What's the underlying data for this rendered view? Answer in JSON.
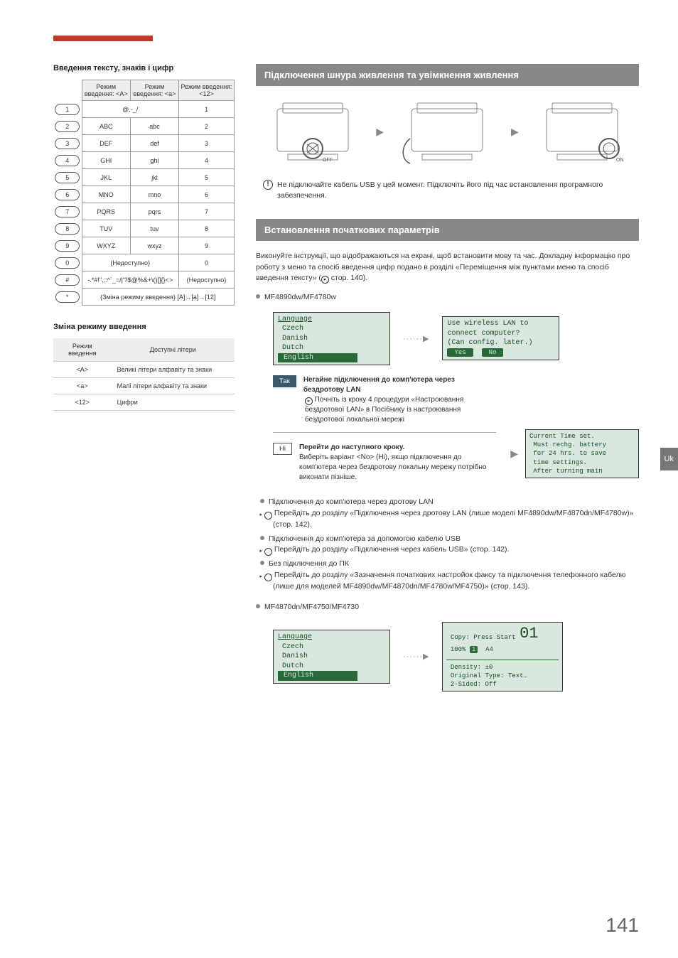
{
  "page_number": "141",
  "side_tab": "Uk",
  "left": {
    "h1": "Введення тексту, знаків і цифр",
    "char_table": {
      "headers": [
        "",
        "Режим введення: <A>",
        "Режим введення: <a>",
        "Режим введення: <12>"
      ],
      "rows": [
        {
          "key": "1",
          "a": "@.-_/",
          "b": "",
          "c": "1",
          "span": true
        },
        {
          "key": "2",
          "a": "ABC",
          "b": "abc",
          "c": "2"
        },
        {
          "key": "3",
          "a": "DEF",
          "b": "def",
          "c": "3"
        },
        {
          "key": "4",
          "a": "GHI",
          "b": "ghi",
          "c": "4"
        },
        {
          "key": "5",
          "a": "JKL",
          "b": "jkl",
          "c": "5"
        },
        {
          "key": "6",
          "a": "MNO",
          "b": "mno",
          "c": "6"
        },
        {
          "key": "7",
          "a": "PQRS",
          "b": "pqrs",
          "c": "7"
        },
        {
          "key": "8",
          "a": "TUV",
          "b": "tuv",
          "c": "8"
        },
        {
          "key": "9",
          "a": "WXYZ",
          "b": "wxyz",
          "c": "9"
        },
        {
          "key": "0",
          "a": "(Недоступно)",
          "b": "",
          "c": "0",
          "span": true
        },
        {
          "key": "#",
          "a": "-.*#!\",;:^`_=/|'?$@%&+\\()[]{}<>",
          "b": "",
          "c": "(Недоступно)",
          "span": true
        },
        {
          "key": "*",
          "a": "(Зміна режиму введення) [A]→[a]→[12]",
          "b": "",
          "c": "",
          "full": true
        }
      ]
    },
    "h2": "Зміна режиму введення",
    "mode_table": {
      "headers": [
        "Режим введення",
        "Доступні літери"
      ],
      "rows": [
        [
          "<A>",
          "Великі літери алфавіту та знаки"
        ],
        [
          "<a>",
          "Малі літери алфавіту та знаки"
        ],
        [
          "<12>",
          "Цифри"
        ]
      ]
    }
  },
  "right": {
    "sec1_title": "Підключення шнура живлення та увімкнення живлення",
    "printer_labels": {
      "off": "OFF",
      "on": "ON"
    },
    "usb_note": "Не підключайте кабель USB у цей момент. Підключіть його під час встановлення програмного забезпечення.",
    "sec2_title": "Встановлення початкових параметрів",
    "sec2_body_a": "Виконуйте інструкції, що відображаються на екрані, щоб встановити мову та час. Докладну інформацію про роботу з меню та спосіб введення цифр подано в розділі «Переміщення між пунктами меню та спосіб введення тексту» (",
    "sec2_body_b": " стор. 140).",
    "model1": "MF4890dw/MF4780w",
    "lcd1": {
      "title": "Language",
      "opts": [
        "Czech",
        "Danish",
        "Dutch"
      ],
      "hl": "English"
    },
    "lcd2": {
      "l1": "Use wireless LAN to",
      "l2": "connect computer?",
      "l3": "(Can config. later.)",
      "yes": "Yes",
      "no": "No"
    },
    "choice_yes": {
      "label": "Так",
      "title": "Негайне підключення до комп'ютера через бездротову LAN",
      "body": "Почніть із кроку 4 процедури «Настроювання бездротової LAN» в Посібнику із настроювання бездротової локальної мережі"
    },
    "choice_no": {
      "label": "Ні",
      "title": "Перейти до наступного кроку.",
      "body": "Виберіть варіант <No> (Ні), якщо підключення до комп'ютера через бездротову локальну мережу потрібно виконати пізніше."
    },
    "lcd3": {
      "l1": "Current Time set.",
      "l2": "Must rechg. battery",
      "l3": "for 24 hrs. to save",
      "l4": "time settings.",
      "l5": "After turning main"
    },
    "conn": {
      "i1": "Підключення до комп'ютера через дротову LAN",
      "i1s": "Перейдіть до розділу «Підключення через дротову LAN (лише моделі MF4890dw/MF4870dn/MF4780w)» (стор. 142).",
      "i2": "Підключення до комп'ютера за допомогою кабелю USB",
      "i2s": "Перейдіть до розділу «Підключення через кабель USB» (стор. 142).",
      "i3": "Без підключення до ПК",
      "i3s": "Перейдіть до розділу «Зазначення початкових настройок факсу та підключення телефонного кабелю (лише для моделей MF4890dw/MF4870dn/MF4780w/MF4750)» (стор. 143)."
    },
    "model2": "MF4870dn/MF4750/MF4730",
    "lcd4": {
      "title": "Language",
      "opts": [
        "Czech",
        "Danish",
        "Dutch"
      ],
      "hl": "English"
    },
    "lcd5": {
      "l1": "Copy: Press Start",
      "l2a": "100%",
      "l2b": "A4",
      "badge": "01",
      "l3": "Density: ±0",
      "l4": "Original Type: Text…",
      "l5": "2-Sided: Off"
    }
  }
}
